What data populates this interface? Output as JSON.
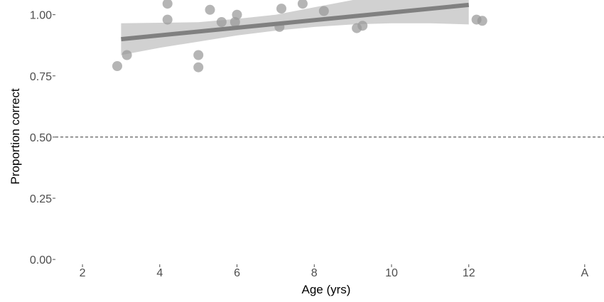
{
  "chart_data": {
    "type": "scatter",
    "title": "",
    "xlabel": "Age (yrs)",
    "ylabel": "Proportion correct",
    "xlim": [
      1.3,
      15.5
    ],
    "ylim": [
      -0.02,
      1.06
    ],
    "x_ticks": [
      {
        "value": 2,
        "label": "2"
      },
      {
        "value": 4,
        "label": "4"
      },
      {
        "value": 6,
        "label": "6"
      },
      {
        "value": 8,
        "label": "8"
      },
      {
        "value": 10,
        "label": "10"
      },
      {
        "value": 12,
        "label": "12"
      },
      {
        "value": 15,
        "label": "A"
      }
    ],
    "y_ticks": [
      {
        "value": 0.0,
        "label": "0.00"
      },
      {
        "value": 0.25,
        "label": "0.25"
      },
      {
        "value": 0.5,
        "label": "0.50"
      },
      {
        "value": 0.75,
        "label": "0.75"
      },
      {
        "value": 1.0,
        "label": "1.00"
      }
    ],
    "grid": false,
    "reference_line": {
      "y": 0.5,
      "style": "dashed",
      "color": "#333333"
    },
    "points": [
      {
        "x": 2.9,
        "y": 0.79
      },
      {
        "x": 3.15,
        "y": 0.835
      },
      {
        "x": 4.2,
        "y": 1.045
      },
      {
        "x": 4.2,
        "y": 0.98
      },
      {
        "x": 5.0,
        "y": 0.835
      },
      {
        "x": 5.0,
        "y": 0.785
      },
      {
        "x": 5.3,
        "y": 1.02
      },
      {
        "x": 5.6,
        "y": 0.97
      },
      {
        "x": 5.95,
        "y": 0.97
      },
      {
        "x": 6.0,
        "y": 1.0
      },
      {
        "x": 7.1,
        "y": 0.95
      },
      {
        "x": 7.15,
        "y": 1.025
      },
      {
        "x": 7.7,
        "y": 1.045
      },
      {
        "x": 8.25,
        "y": 1.015
      },
      {
        "x": 9.1,
        "y": 0.945
      },
      {
        "x": 9.25,
        "y": 0.955
      },
      {
        "x": 12.2,
        "y": 0.98
      },
      {
        "x": 12.35,
        "y": 0.975
      }
    ],
    "fit_line": {
      "x": [
        3.0,
        12.0
      ],
      "y": [
        0.9,
        1.04
      ]
    },
    "confidence_band": {
      "x": [
        3.0,
        4.0,
        5.0,
        6.0,
        7.0,
        8.0,
        9.0,
        10.0,
        11.0,
        12.0
      ],
      "upper": [
        0.965,
        0.967,
        0.969,
        0.983,
        1.0,
        1.03,
        1.06,
        1.06,
        1.06,
        1.06
      ],
      "lower": [
        0.835,
        0.865,
        0.89,
        0.915,
        0.935,
        0.95,
        0.96,
        0.965,
        0.965,
        0.96
      ]
    },
    "colors": {
      "points": "#999999",
      "line": "#808080",
      "band": "#cccccc"
    }
  }
}
